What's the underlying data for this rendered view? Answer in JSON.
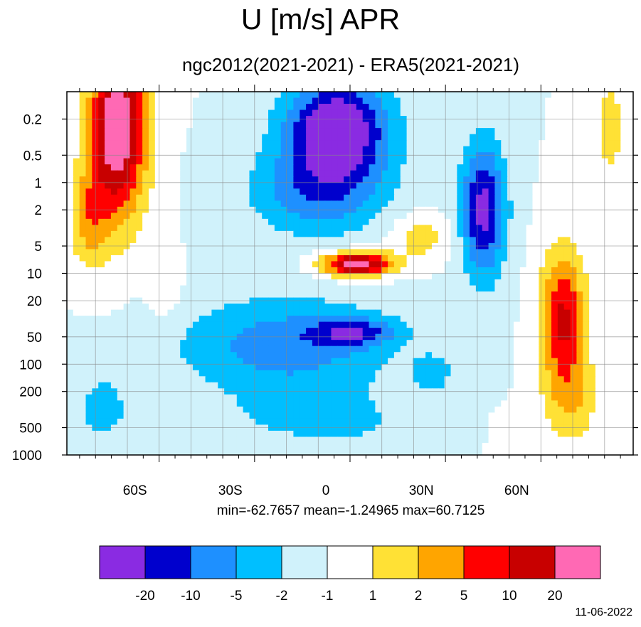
{
  "title": "U [m/s] APR",
  "subtitle": "ngc2012(2021-2021) - ERA5(2021-2021)",
  "stats": "min=-62.7657   mean=-1.24965   max=60.7125",
  "date": "11-06-2022",
  "chart_data": {
    "type": "heatmap",
    "title": "U [m/s] APR",
    "subtitle": "ngc2012(2021-2021) - ERA5(2021-2021)",
    "x_axis": {
      "tick_labels": [
        "60S",
        "30S",
        "0",
        "30N",
        "60N"
      ],
      "tick_values": [
        -60,
        -30,
        0,
        30,
        60
      ],
      "range": [
        -89,
        89
      ]
    },
    "y_axis": {
      "scale": "log",
      "reversed": true,
      "tick_labels": [
        "0.2",
        "0.5",
        "1",
        "2",
        "5",
        "10",
        "20",
        "50",
        "100",
        "200",
        "500",
        "1000"
      ],
      "tick_values": [
        0.2,
        0.5,
        1,
        2,
        5,
        10,
        20,
        50,
        100,
        200,
        500,
        1000
      ],
      "range": [
        0.1,
        1000
      ]
    },
    "grid": true,
    "stats": {
      "min": -62.7657,
      "mean": -1.24965,
      "max": 60.7125
    },
    "colorbar": {
      "levels": [
        "-20",
        "-10",
        "-5",
        "-2",
        "-1",
        "1",
        "2",
        "5",
        "10",
        "20"
      ],
      "colors": [
        "#8a2be2",
        "#0000cd",
        "#1e90ff",
        "#00bfff",
        "#d0f2fb",
        "#ffffff",
        "#ffe135",
        "#ffa500",
        "#ff0000",
        "#c80000",
        "#ff69b4"
      ]
    }
  }
}
